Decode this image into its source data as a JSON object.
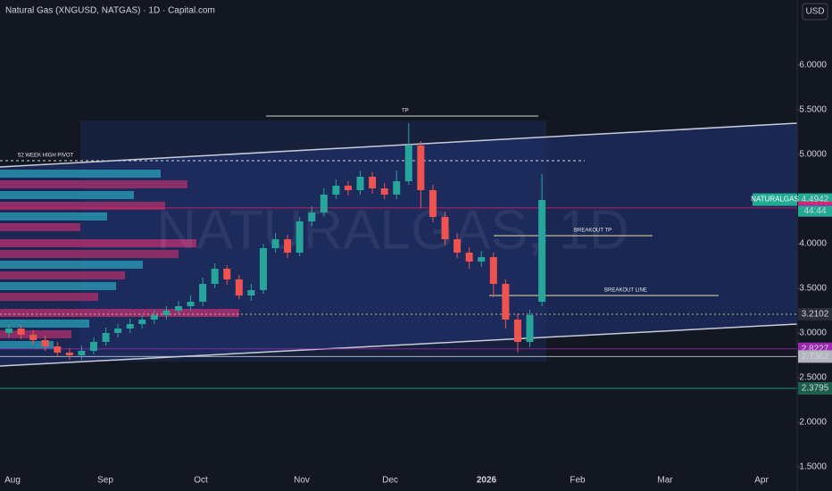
{
  "chart_data": {
    "type": "candlestick",
    "title": "Natural Gas (XNGUSD, NATGAS) · 1D · Capital.com",
    "watermark": "NATURALGAS, 1D",
    "currency": "USD",
    "symbol_label": "NATURALGAS",
    "countdown": "44:44",
    "up_color": "#26a69a",
    "down_color": "#ef5350",
    "ylim": [
      6.73,
      1.23
    ],
    "yticks": [
      {
        "value": 6,
        "label": "6.0000"
      },
      {
        "value": 5.5,
        "label": "5.5000"
      },
      {
        "value": 5,
        "label": "5.0000"
      },
      {
        "value": 4.5,
        "label": "4.5000"
      },
      {
        "value": 4,
        "label": "4.0000"
      },
      {
        "value": 3.5,
        "label": "3.5000"
      },
      {
        "value": 3,
        "label": "3.0000"
      },
      {
        "value": 2.5,
        "label": "2.5000"
      },
      {
        "value": 2,
        "label": "2.0000"
      },
      {
        "value": 1.5,
        "label": "1.5000"
      }
    ],
    "x_labels": [
      "Aug",
      "Sep",
      "Oct",
      "Nov",
      "Dec",
      "2026",
      "Feb",
      "Mar",
      "Apr"
    ],
    "open": [
      3.0,
      3.05,
      2.98,
      2.92,
      2.85,
      2.78,
      2.75,
      2.8,
      2.9,
      3.0,
      3.05,
      3.1,
      3.15,
      3.2,
      3.25,
      3.3,
      3.35,
      3.55,
      3.72,
      3.6,
      3.42,
      3.48,
      3.95,
      4.05,
      3.9,
      4.25,
      4.35,
      4.55,
      4.65,
      4.6,
      4.75,
      4.62,
      4.55,
      4.7,
      5.1,
      4.6,
      4.3,
      4.05,
      3.9,
      3.8,
      3.85,
      3.55,
      3.15,
      2.9,
      3.35
    ],
    "high": [
      3.1,
      3.09,
      3.03,
      2.97,
      2.9,
      2.83,
      2.86,
      2.95,
      3.06,
      3.1,
      3.16,
      3.2,
      3.26,
      3.3,
      3.36,
      3.42,
      3.62,
      3.78,
      3.76,
      3.65,
      3.55,
      4.0,
      4.12,
      4.1,
      4.3,
      4.42,
      4.62,
      4.72,
      4.7,
      4.82,
      4.8,
      4.68,
      4.82,
      5.35,
      5.15,
      4.66,
      4.36,
      4.12,
      3.96,
      3.92,
      3.9,
      3.6,
      3.22,
      3.26,
      4.78
    ],
    "low": [
      2.95,
      2.93,
      2.87,
      2.8,
      2.73,
      2.7,
      2.7,
      2.76,
      2.86,
      2.95,
      3.0,
      3.05,
      3.1,
      3.15,
      3.2,
      3.25,
      3.3,
      3.5,
      3.54,
      3.38,
      3.36,
      3.44,
      3.9,
      3.84,
      3.86,
      4.2,
      4.3,
      4.5,
      4.54,
      4.55,
      4.56,
      4.5,
      4.5,
      4.66,
      4.4,
      4.24,
      3.98,
      3.84,
      3.72,
      3.74,
      3.4,
      3.05,
      2.78,
      2.84,
      3.3
    ],
    "close": [
      3.05,
      2.98,
      2.92,
      2.85,
      2.78,
      2.75,
      2.8,
      2.9,
      3.0,
      3.05,
      3.1,
      3.15,
      3.2,
      3.25,
      3.3,
      3.35,
      3.55,
      3.72,
      3.6,
      3.42,
      3.48,
      3.95,
      4.05,
      3.9,
      4.25,
      4.35,
      4.55,
      4.65,
      4.6,
      4.75,
      4.62,
      4.55,
      4.7,
      5.1,
      4.6,
      4.3,
      4.05,
      3.9,
      3.8,
      3.85,
      3.55,
      3.15,
      2.9,
      3.2,
      4.49
    ],
    "annotations": [
      {
        "text": "TP",
        "value": 5.43
      },
      {
        "text": "52 WEEK HIGH PIVOT",
        "value": 4.93
      },
      {
        "text": "BREAKOUT TP",
        "value": 4.09
      },
      {
        "text": "BREAKOUT LINE",
        "value": 3.42
      }
    ],
    "price_tags": [
      {
        "value": 4.4942,
        "color": "#22ab94"
      },
      {
        "value": 4.4009,
        "color": "#e91e63"
      },
      {
        "value": 4.3725,
        "color": "#9c27b0"
      },
      {
        "value": 3.2102,
        "color": "#2a2e39"
      },
      {
        "value": 2.8227,
        "color": "#9c27b0"
      },
      {
        "value": 2.7362,
        "color": "#b2b5be"
      },
      {
        "value": 2.3795,
        "color": "#1b5e4a"
      }
    ]
  }
}
